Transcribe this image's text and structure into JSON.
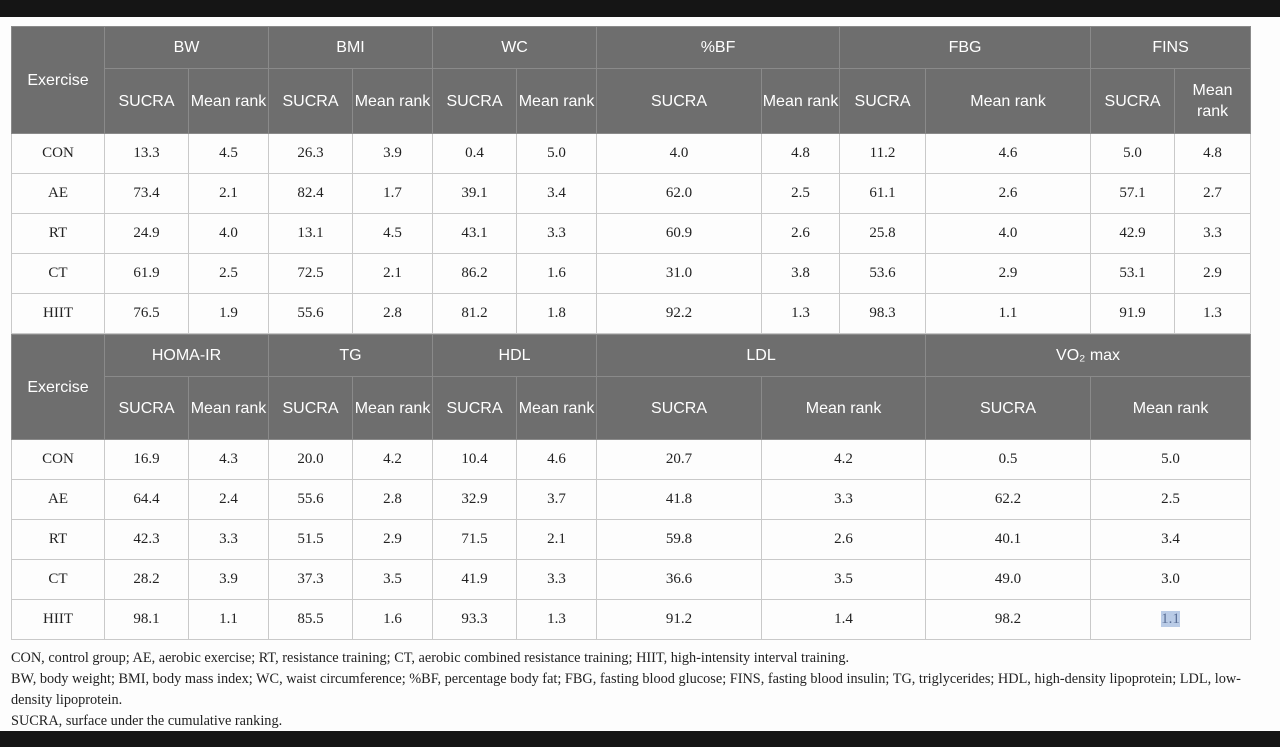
{
  "table1": {
    "exercise_label": "Exercise",
    "groups": [
      "BW",
      "BMI",
      "WC",
      "%BF",
      "FBG",
      "FINS"
    ],
    "sub_labels": [
      "SUCRA",
      "Mean rank",
      "SUCRA",
      "Mean rank",
      "SUCRA",
      "Mean rank",
      "SUCRA",
      "Mean rank",
      "SUCRA",
      "Mean rank",
      "SUCRA",
      "Mean rank"
    ],
    "rows": [
      {
        "exercise": "CON",
        "values": [
          "13.3",
          "4.5",
          "26.3",
          "3.9",
          "0.4",
          "5.0",
          "4.0",
          "4.8",
          "11.2",
          "4.6",
          "5.0",
          "4.8"
        ]
      },
      {
        "exercise": "AE",
        "values": [
          "73.4",
          "2.1",
          "82.4",
          "1.7",
          "39.1",
          "3.4",
          "62.0",
          "2.5",
          "61.1",
          "2.6",
          "57.1",
          "2.7"
        ]
      },
      {
        "exercise": "RT",
        "values": [
          "24.9",
          "4.0",
          "13.1",
          "4.5",
          "43.1",
          "3.3",
          "60.9",
          "2.6",
          "25.8",
          "4.0",
          "42.9",
          "3.3"
        ]
      },
      {
        "exercise": "CT",
        "values": [
          "61.9",
          "2.5",
          "72.5",
          "2.1",
          "86.2",
          "1.6",
          "31.0",
          "3.8",
          "53.6",
          "2.9",
          "53.1",
          "2.9"
        ]
      },
      {
        "exercise": "HIIT",
        "values": [
          "76.5",
          "1.9",
          "55.6",
          "2.8",
          "81.2",
          "1.8",
          "92.2",
          "1.3",
          "98.3",
          "1.1",
          "91.9",
          "1.3"
        ]
      }
    ]
  },
  "table2": {
    "exercise_label": "Exercise",
    "groups": [
      "HOMA-IR",
      "TG",
      "HDL",
      "LDL",
      "VO₂ max"
    ],
    "sub_labels": [
      "SUCRA",
      "Mean rank",
      "SUCRA",
      "Mean rank",
      "SUCRA",
      "Mean rank",
      "SUCRA",
      "Mean rank",
      "SUCRA",
      "Mean rank"
    ],
    "rows": [
      {
        "exercise": "CON",
        "values": [
          "16.9",
          "4.3",
          "20.0",
          "4.2",
          "10.4",
          "4.6",
          "20.7",
          "4.2",
          "0.5",
          "5.0"
        ]
      },
      {
        "exercise": "AE",
        "values": [
          "64.4",
          "2.4",
          "55.6",
          "2.8",
          "32.9",
          "3.7",
          "41.8",
          "3.3",
          "62.2",
          "2.5"
        ]
      },
      {
        "exercise": "RT",
        "values": [
          "42.3",
          "3.3",
          "51.5",
          "2.9",
          "71.5",
          "2.1",
          "59.8",
          "2.6",
          "40.1",
          "3.4"
        ]
      },
      {
        "exercise": "CT",
        "values": [
          "28.2",
          "3.9",
          "37.3",
          "3.5",
          "41.9",
          "3.3",
          "36.6",
          "3.5",
          "49.0",
          "3.0"
        ]
      },
      {
        "exercise": "HIIT",
        "values": [
          "98.1",
          "1.1",
          "85.5",
          "1.6",
          "93.3",
          "1.3",
          "91.2",
          "1.4",
          "98.2",
          "1.1"
        ]
      }
    ]
  },
  "footnotes": [
    "CON, control group; AE, aerobic exercise; RT, resistance training; CT, aerobic combined resistance training; HIIT, high-intensity interval training.",
    "BW, body weight; BMI, body mass index; WC, waist circumference; %BF, percentage body fat; FBG, fasting blood glucose; FINS, fasting blood insulin; TG, triglycerides; HDL, high-density lipoprotein; LDL, low-density lipoprotein.",
    "SUCRA, surface under the cumulative ranking."
  ],
  "colors": {
    "header_bg": "#6e6e6e",
    "header_text": "#ffffff",
    "highlight": "#b9cbe6"
  }
}
